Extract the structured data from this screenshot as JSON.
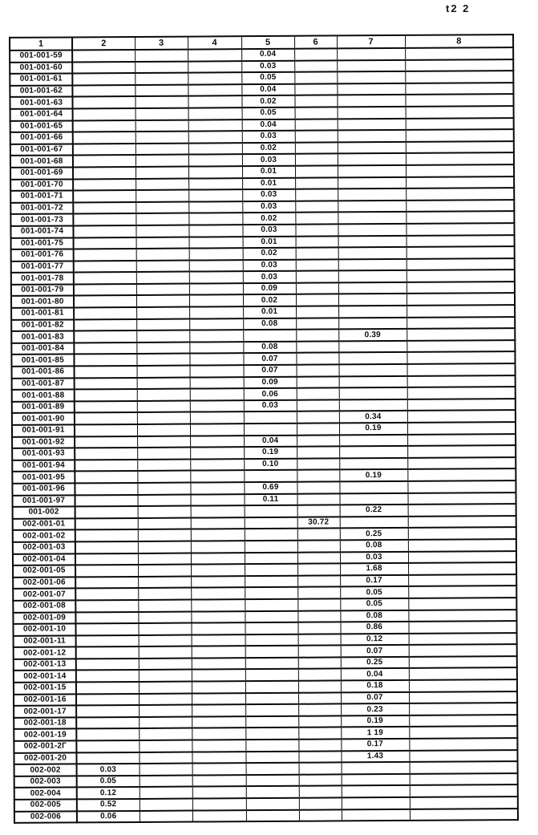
{
  "page": {
    "annotation": "t2 2"
  },
  "table": {
    "headers": [
      "1",
      "2",
      "3",
      "4",
      "5",
      "6",
      "7",
      "8"
    ],
    "rows": [
      [
        "001-001-59",
        "",
        "",
        "",
        "0.04",
        "",
        "",
        ""
      ],
      [
        "001-001-60",
        "",
        "",
        "",
        "0.03",
        "",
        "",
        ""
      ],
      [
        "001-001-61",
        "",
        "",
        "",
        "0.05",
        "",
        "",
        ""
      ],
      [
        "001-001-62",
        "",
        "",
        "",
        "0.04",
        "",
        "",
        ""
      ],
      [
        "001-001-63",
        "",
        "",
        "",
        "0.02",
        "",
        "",
        ""
      ],
      [
        "001-001-64",
        "",
        "",
        "",
        "0.05",
        "",
        "",
        ""
      ],
      [
        "001-001-65",
        "",
        "",
        "",
        "0.04",
        "",
        "",
        ""
      ],
      [
        "001-001-66",
        "",
        "",
        "",
        "0.03",
        "",
        "",
        ""
      ],
      [
        "001-001-67",
        "",
        "",
        "",
        "0.02",
        "",
        "",
        ""
      ],
      [
        "001-001-68",
        "",
        "",
        "",
        "0.03",
        "",
        "",
        ""
      ],
      [
        "001-001-69",
        "",
        "",
        "",
        "0.01",
        "",
        "",
        ""
      ],
      [
        "001-001-70",
        "",
        "",
        "",
        "0.01",
        "",
        "",
        ""
      ],
      [
        "001-001-71",
        "",
        "",
        "",
        "0.03",
        "",
        "",
        ""
      ],
      [
        "001-001-72",
        "",
        "",
        "",
        "0.03",
        "",
        "",
        ""
      ],
      [
        "001-001-73",
        "",
        "",
        "",
        "0.02",
        "",
        "",
        ""
      ],
      [
        "001-001-74",
        "",
        "",
        "",
        "0.03",
        "",
        "",
        ""
      ],
      [
        "001-001-75",
        "",
        "",
        "",
        "0.01",
        "",
        "",
        ""
      ],
      [
        "001-001-76",
        "",
        "",
        "",
        "0.02",
        "",
        "",
        ""
      ],
      [
        "001-001-77",
        "",
        "",
        "",
        "0.03",
        "",
        "",
        ""
      ],
      [
        "001-001-78",
        "",
        "",
        "",
        "0.03",
        "",
        "",
        ""
      ],
      [
        "001-001-79",
        "",
        "",
        "",
        "0.09",
        "",
        "",
        ""
      ],
      [
        "001-001-80",
        "",
        "",
        "",
        "0.02",
        "",
        "",
        ""
      ],
      [
        "001-001-81",
        "",
        "",
        "",
        "0.01",
        "",
        "",
        ""
      ],
      [
        "001-001-82",
        "",
        "",
        "",
        "0.08",
        "",
        "",
        ""
      ],
      [
        "001-001-83",
        "",
        "",
        "",
        "",
        "",
        "0.39",
        ""
      ],
      [
        "001-001-84",
        "",
        "",
        "",
        "0.08",
        "",
        "",
        ""
      ],
      [
        "001-001-85",
        "",
        "",
        "",
        "0.07",
        "",
        "",
        ""
      ],
      [
        "001-001-86",
        "",
        "",
        "",
        "0.07",
        "",
        "",
        ""
      ],
      [
        "001-001-87",
        "",
        "",
        "",
        "0.09",
        "",
        "",
        ""
      ],
      [
        "001-001-88",
        "",
        "",
        "",
        "0.06",
        "",
        "",
        ""
      ],
      [
        "001-001-89",
        "",
        "",
        "",
        "0.03",
        "",
        "",
        ""
      ],
      [
        "001-001-90",
        "",
        "",
        "",
        "",
        "",
        "0.34",
        ""
      ],
      [
        "001-001-91",
        "",
        "",
        "",
        "",
        "",
        "0.19",
        ""
      ],
      [
        "001-001-92",
        "",
        "",
        "",
        "0.04",
        "",
        "",
        ""
      ],
      [
        "001-001-93",
        "",
        "",
        "",
        "0.19",
        "",
        "",
        ""
      ],
      [
        "001-001-94",
        "",
        "",
        "",
        "0.10",
        "",
        "",
        ""
      ],
      [
        "001-001-95",
        "",
        "",
        "",
        "",
        "",
        "0.19",
        ""
      ],
      [
        "001-001-96",
        "",
        "",
        "",
        "0.69",
        "",
        "",
        ""
      ],
      [
        "001-001-97",
        "",
        "",
        "",
        "0.11",
        "",
        "",
        ""
      ],
      [
        "001-002",
        "",
        "",
        "",
        "",
        "",
        "0.22",
        ""
      ],
      [
        "002-001-01",
        "",
        "",
        "",
        "",
        "30.72",
        "",
        ""
      ],
      [
        "002-001-02",
        "",
        "",
        "",
        "",
        "",
        "0.25",
        ""
      ],
      [
        "002-001-03",
        "",
        "",
        "",
        "",
        "",
        "0.08",
        ""
      ],
      [
        "002-001-04",
        "",
        "",
        "",
        "",
        "",
        "0.03",
        ""
      ],
      [
        "002-001-05",
        "",
        "",
        "",
        "",
        "",
        "1.68",
        ""
      ],
      [
        "002-001-06",
        "",
        "",
        "",
        "",
        "",
        "0.17",
        ""
      ],
      [
        "002-001-07",
        "",
        "",
        "",
        "",
        "",
        "0.05",
        ""
      ],
      [
        "002-001-08",
        "",
        "",
        "",
        "",
        "",
        "0.05",
        ""
      ],
      [
        "002-001-09",
        "",
        "",
        "",
        "",
        "",
        "0.08",
        ""
      ],
      [
        "002-001-10",
        "",
        "",
        "",
        "",
        "",
        "0.86",
        ""
      ],
      [
        "002-001-11",
        "",
        "",
        "",
        "",
        "",
        "0.12",
        ""
      ],
      [
        "002-001-12",
        "",
        "",
        "",
        "",
        "",
        "0.07",
        ""
      ],
      [
        "002-001-13",
        "",
        "",
        "",
        "",
        "",
        "0.25",
        ""
      ],
      [
        "002-001-14",
        "",
        "",
        "",
        "",
        "",
        "0.04",
        ""
      ],
      [
        "002-001-15",
        "",
        "",
        "",
        "",
        "",
        "0.18",
        ""
      ],
      [
        "002-001-16",
        "",
        "",
        "",
        "",
        "",
        "0.07",
        ""
      ],
      [
        "002-001-17",
        "",
        "",
        "",
        "",
        "",
        "0.23",
        ""
      ],
      [
        "002-001-18",
        "",
        "",
        "",
        "",
        "",
        "0.19",
        ""
      ],
      [
        "002-001-19",
        "",
        "",
        "",
        "",
        "",
        "1 19",
        ""
      ],
      [
        "002-001-2Г",
        "",
        "",
        "",
        "",
        "",
        "0.17",
        ""
      ],
      [
        "002-001-20",
        "",
        "",
        "",
        "",
        "",
        "1.43",
        ""
      ],
      [
        "002-002",
        "0.03",
        "",
        "",
        "",
        "",
        "",
        ""
      ],
      [
        "002-003",
        "0.05",
        "",
        "",
        "",
        "",
        "",
        ""
      ],
      [
        "002-004",
        "0.12",
        "",
        "",
        "",
        "",
        "",
        ""
      ],
      [
        "002-005",
        "0.52",
        "",
        "",
        "",
        "",
        "",
        ""
      ],
      [
        "002-006",
        "0.06",
        "",
        "",
        "",
        "",
        "",
        ""
      ]
    ]
  }
}
